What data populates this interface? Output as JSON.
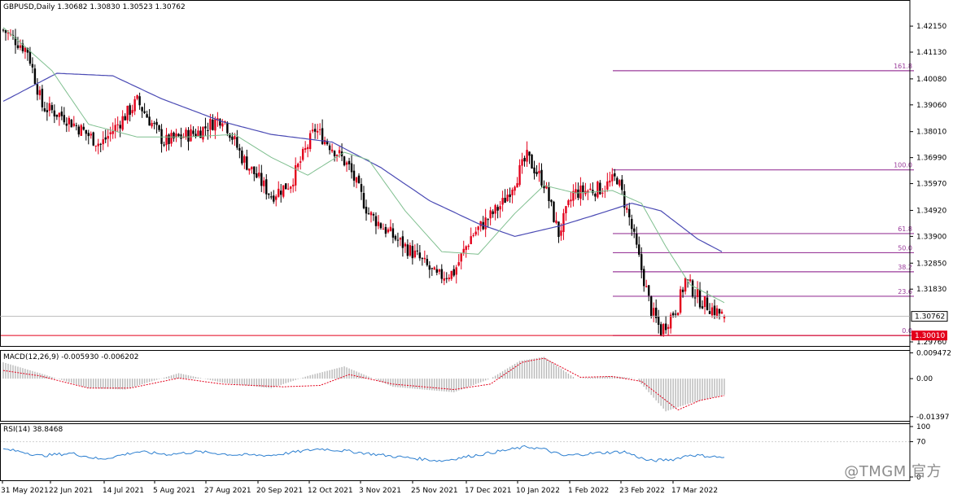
{
  "header": {
    "title": "GBPUSD,Daily  1.30682 1.30830 1.30523 1.30762"
  },
  "watermark": "@TMGM 官方",
  "colors": {
    "bull": "#e3001b",
    "bear": "#000000",
    "ma_fast": "#7fbf8f",
    "ma_slow": "#4a4ab4",
    "fib": "#9b3c9b",
    "support": "#e3001b",
    "price_tag": "#e3001b",
    "macd_hist": "#b8b8b8",
    "macd_signal": "#e3001b",
    "rsi": "#2c7fd0",
    "grid": "#c8c8c8"
  },
  "chart_data": [
    {
      "type": "candlestick",
      "title": "GBPUSD,Daily",
      "ohlc_last": {
        "open": 1.30682,
        "high": 1.3083,
        "low": 1.30523,
        "close": 1.30762
      },
      "ylim": [
        1.296,
        1.426
      ],
      "y_ticks": [
        "1.42150",
        "1.41130",
        "1.40080",
        "1.39060",
        "1.38010",
        "1.36990",
        "1.35970",
        "1.34920",
        "1.33900",
        "1.32850",
        "1.31830",
        "1.29760"
      ],
      "x_ticks": [
        "31 May 2021",
        "22 Jun 2021",
        "14 Jul 2021",
        "5 Aug 2021",
        "27 Aug 2021",
        "20 Sep 2021",
        "12 Oct 2021",
        "3 Nov 2021",
        "25 Nov 2021",
        "17 Dec 2021",
        "10 Jan 2022",
        "1 Feb 2022",
        "23 Feb 2022",
        "17 Mar 2022"
      ],
      "current_price": "1.30762",
      "support_price": "1.30010",
      "fib_levels": [
        {
          "label": "161.8",
          "price": 1.404
        },
        {
          "label": "100.0",
          "price": 1.3651
        },
        {
          "label": "61.8",
          "price": 1.3401
        },
        {
          "label": "50.0",
          "price": 1.3326
        },
        {
          "label": "38.2",
          "price": 1.3251
        },
        {
          "label": "23.6",
          "price": 1.3155
        },
        {
          "label": "0.0",
          "price": 1.3001
        }
      ],
      "price_anchors": [
        [
          0,
          1.42
        ],
        [
          10,
          1.412
        ],
        [
          16,
          1.39
        ],
        [
          25,
          1.386
        ],
        [
          40,
          1.375
        ],
        [
          55,
          1.392
        ],
        [
          66,
          1.376
        ],
        [
          80,
          1.38
        ],
        [
          90,
          1.386
        ],
        [
          98,
          1.37
        ],
        [
          110,
          1.355
        ],
        [
          118,
          1.36
        ],
        [
          128,
          1.381
        ],
        [
          137,
          1.372
        ],
        [
          142,
          1.366
        ],
        [
          150,
          1.348
        ],
        [
          160,
          1.339
        ],
        [
          170,
          1.331
        ],
        [
          178,
          1.323
        ],
        [
          185,
          1.325
        ],
        [
          192,
          1.339
        ],
        [
          205,
          1.352
        ],
        [
          215,
          1.37
        ],
        [
          222,
          1.36
        ],
        [
          228,
          1.34
        ],
        [
          234,
          1.356
        ],
        [
          246,
          1.358
        ],
        [
          252,
          1.362
        ],
        [
          257,
          1.346
        ],
        [
          263,
          1.322
        ],
        [
          266,
          1.31
        ],
        [
          270,
          1.302
        ],
        [
          277,
          1.312
        ],
        [
          280,
          1.322
        ],
        [
          286,
          1.314
        ],
        [
          292,
          1.31
        ],
        [
          296,
          1.3076
        ]
      ],
      "ma_fast_anchors": [
        [
          0,
          1.421
        ],
        [
          20,
          1.404
        ],
        [
          35,
          1.383
        ],
        [
          55,
          1.378
        ],
        [
          75,
          1.378
        ],
        [
          95,
          1.379
        ],
        [
          110,
          1.37
        ],
        [
          125,
          1.363
        ],
        [
          140,
          1.372
        ],
        [
          150,
          1.369
        ],
        [
          165,
          1.349
        ],
        [
          180,
          1.333
        ],
        [
          195,
          1.332
        ],
        [
          210,
          1.348
        ],
        [
          222,
          1.359
        ],
        [
          235,
          1.356
        ],
        [
          250,
          1.357
        ],
        [
          262,
          1.352
        ],
        [
          272,
          1.335
        ],
        [
          282,
          1.32
        ],
        [
          296,
          1.313
        ]
      ],
      "ma_slow_anchors": [
        [
          0,
          1.392
        ],
        [
          22,
          1.403
        ],
        [
          45,
          1.402
        ],
        [
          65,
          1.393
        ],
        [
          90,
          1.384
        ],
        [
          110,
          1.379
        ],
        [
          135,
          1.376
        ],
        [
          155,
          1.366
        ],
        [
          175,
          1.353
        ],
        [
          195,
          1.344
        ],
        [
          210,
          1.339
        ],
        [
          228,
          1.343
        ],
        [
          245,
          1.348
        ],
        [
          258,
          1.352
        ],
        [
          270,
          1.349
        ],
        [
          285,
          1.338
        ],
        [
          295,
          1.333
        ]
      ]
    },
    {
      "type": "histogram",
      "title": "MACD(12,26,9) -0.005930 -0.006202",
      "ylim": [
        -0.0155,
        0.0105
      ],
      "y_ticks": [
        "0.009472",
        "0.00",
        "-0.01397"
      ],
      "macd_anchors": [
        [
          0,
          0.006
        ],
        [
          15,
          0.002
        ],
        [
          35,
          -0.0035
        ],
        [
          50,
          -0.004
        ],
        [
          72,
          0.002
        ],
        [
          90,
          -0.0015
        ],
        [
          110,
          -0.0035
        ],
        [
          125,
          0.001
        ],
        [
          140,
          0.0045
        ],
        [
          160,
          -0.003
        ],
        [
          185,
          -0.005
        ],
        [
          200,
          0.0
        ],
        [
          212,
          0.0065
        ],
        [
          222,
          0.008
        ],
        [
          235,
          0.0
        ],
        [
          250,
          0.001
        ],
        [
          260,
          0.0
        ],
        [
          272,
          -0.012
        ],
        [
          282,
          -0.009
        ],
        [
          296,
          -0.0059
        ]
      ],
      "signal_anchors": [
        [
          0,
          0.003
        ],
        [
          15,
          0.001
        ],
        [
          35,
          -0.0035
        ],
        [
          52,
          -0.0035
        ],
        [
          72,
          0.0002
        ],
        [
          90,
          -0.002
        ],
        [
          115,
          -0.003
        ],
        [
          130,
          -0.0025
        ],
        [
          142,
          0.0015
        ],
        [
          160,
          -0.002
        ],
        [
          185,
          -0.004
        ],
        [
          200,
          -0.002
        ],
        [
          213,
          0.006
        ],
        [
          222,
          0.0075
        ],
        [
          237,
          0.0005
        ],
        [
          250,
          0.0008
        ],
        [
          262,
          -0.001
        ],
        [
          277,
          -0.0115
        ],
        [
          286,
          -0.008
        ],
        [
          296,
          -0.0062
        ]
      ]
    },
    {
      "type": "line",
      "title": "RSI(14) 38.8468",
      "ylim": [
        0,
        100
      ],
      "y_ticks": [
        "100",
        "70",
        "0"
      ],
      "rsi_anchors": [
        [
          0,
          55
        ],
        [
          8,
          50
        ],
        [
          15,
          42
        ],
        [
          28,
          47
        ],
        [
          40,
          35
        ],
        [
          55,
          50
        ],
        [
          68,
          45
        ],
        [
          80,
          50
        ],
        [
          95,
          44
        ],
        [
          110,
          43
        ],
        [
          130,
          56
        ],
        [
          140,
          52
        ],
        [
          160,
          41
        ],
        [
          180,
          32
        ],
        [
          195,
          44
        ],
        [
          215,
          60
        ],
        [
          222,
          55
        ],
        [
          230,
          42
        ],
        [
          245,
          48
        ],
        [
          255,
          50
        ],
        [
          265,
          32
        ],
        [
          275,
          35
        ],
        [
          282,
          44
        ],
        [
          296,
          38.85
        ]
      ]
    }
  ]
}
